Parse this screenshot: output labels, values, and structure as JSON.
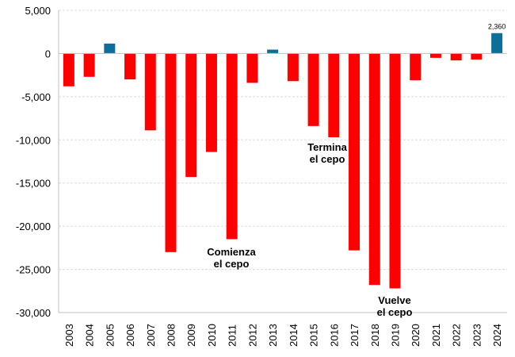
{
  "chart_data": {
    "type": "bar",
    "categories": [
      "2003",
      "2004",
      "2005",
      "2006",
      "2007",
      "2008",
      "2009",
      "2010",
      "2011",
      "2012",
      "2013",
      "2014",
      "2015",
      "2016",
      "2017",
      "2018",
      "2019",
      "2020",
      "2021",
      "2022",
      "2023",
      "2024"
    ],
    "values": [
      -3800,
      -2700,
      1150,
      -3000,
      -8900,
      -23000,
      -14300,
      -11400,
      -21500,
      -3400,
      450,
      -3200,
      -8400,
      -9700,
      -22800,
      -26800,
      -27200,
      -3100,
      -500,
      -800,
      -700,
      2360
    ],
    "ylim": [
      -30000,
      5000
    ],
    "yticks": [
      5000,
      0,
      -5000,
      -10000,
      -15000,
      -20000,
      -25000,
      -30000
    ],
    "ytick_labels": [
      "5,000",
      "0",
      "-5,000",
      "-10,000",
      "-15,000",
      "-20,000",
      "-25,000",
      "-30,000"
    ],
    "colors": {
      "negative": "#ff0000",
      "positive": "#0e6e9a",
      "grid": "#dcdcdc",
      "axis": "#bfbfbf"
    },
    "grid": true,
    "data_labels": [
      {
        "category": "2024",
        "text": "2,360"
      }
    ],
    "annotations": [
      {
        "name": "comienza",
        "lines": [
          "Comienza",
          "el cepo"
        ],
        "category": "2011"
      },
      {
        "name": "termina",
        "lines": [
          "Termina",
          "el cepo"
        ],
        "category": "2015"
      },
      {
        "name": "vuelve",
        "lines": [
          "Vuelve",
          "el cepo"
        ],
        "category": "2019"
      }
    ]
  }
}
